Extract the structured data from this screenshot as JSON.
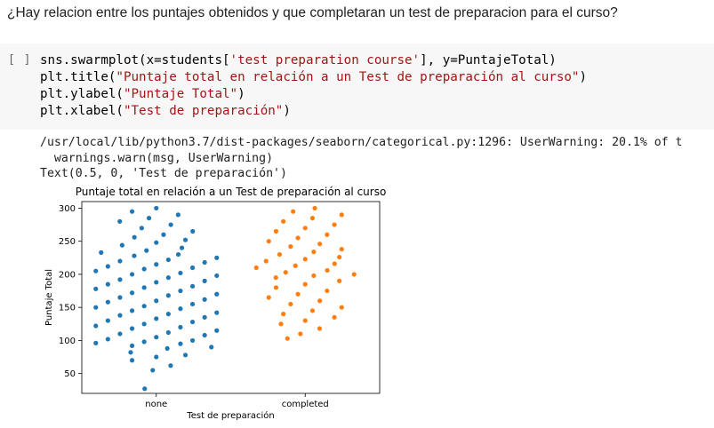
{
  "question": "¿Hay relacion entre los puntajes obtenidos y que completaran un test de preparacion para el curso?",
  "cell": {
    "run_label": "[ ]",
    "code": [
      [
        {
          "t": "sns.swarmplot(x=students["
        },
        {
          "t": "'test preparation course'",
          "s": 1
        },
        {
          "t": "], y=PuntajeTotal)"
        }
      ],
      [
        {
          "t": "plt.title("
        },
        {
          "t": "\"Puntaje total en relación a un Test de preparación al curso\"",
          "s": 1
        },
        {
          "t": ")"
        }
      ],
      [
        {
          "t": "plt.ylabel("
        },
        {
          "t": "\"Puntaje Total\"",
          "s": 1
        },
        {
          "t": ")"
        }
      ],
      [
        {
          "t": "plt.xlabel("
        },
        {
          "t": "\"Test de preparación\"",
          "s": 1
        },
        {
          "t": ")"
        }
      ]
    ]
  },
  "output": {
    "lines": [
      "/usr/local/lib/python3.7/dist-packages/seaborn/categorical.py:1296: UserWarning: 20.1% of t",
      "  warnings.warn(msg, UserWarning)",
      "Text(0.5, 0, 'Test de preparación')"
    ]
  },
  "chart_data": {
    "type": "scatter",
    "subtype": "swarm",
    "title": "Puntaje total en relación a un Test de preparación al curso",
    "xlabel": "Test de preparación",
    "ylabel": "Puntaje Total",
    "ylim": [
      20,
      310
    ],
    "yticks": [
      50,
      100,
      150,
      200,
      250,
      300
    ],
    "categories": [
      "none",
      "completed"
    ],
    "grid": false,
    "series": [
      {
        "category": "none",
        "color": "#1f77b4",
        "values": [
          27,
          55,
          62,
          70,
          75,
          78,
          82,
          88,
          90,
          92,
          95,
          96,
          98,
          100,
          102,
          105,
          108,
          110,
          112,
          115,
          118,
          120,
          122,
          125,
          128,
          130,
          133,
          135,
          138,
          140,
          142,
          145,
          148,
          150,
          152,
          155,
          158,
          160,
          162,
          165,
          168,
          170,
          172,
          175,
          178,
          180,
          182,
          185,
          188,
          190,
          192,
          195,
          198,
          200,
          202,
          205,
          208,
          210,
          212,
          215,
          218,
          220,
          222,
          225,
          228,
          230,
          233,
          236,
          240,
          244,
          248,
          252,
          256,
          260,
          265,
          270,
          275,
          280,
          285,
          290,
          295,
          300
        ]
      },
      {
        "category": "completed",
        "color": "#ff7f0e",
        "values": [
          103,
          110,
          118,
          125,
          130,
          135,
          140,
          145,
          150,
          155,
          160,
          165,
          170,
          175,
          180,
          185,
          190,
          195,
          198,
          200,
          203,
          206,
          210,
          213,
          216,
          220,
          223,
          226,
          230,
          234,
          238,
          242,
          246,
          250,
          255,
          260,
          265,
          270,
          275,
          280,
          285,
          290,
          295,
          300
        ]
      }
    ]
  }
}
